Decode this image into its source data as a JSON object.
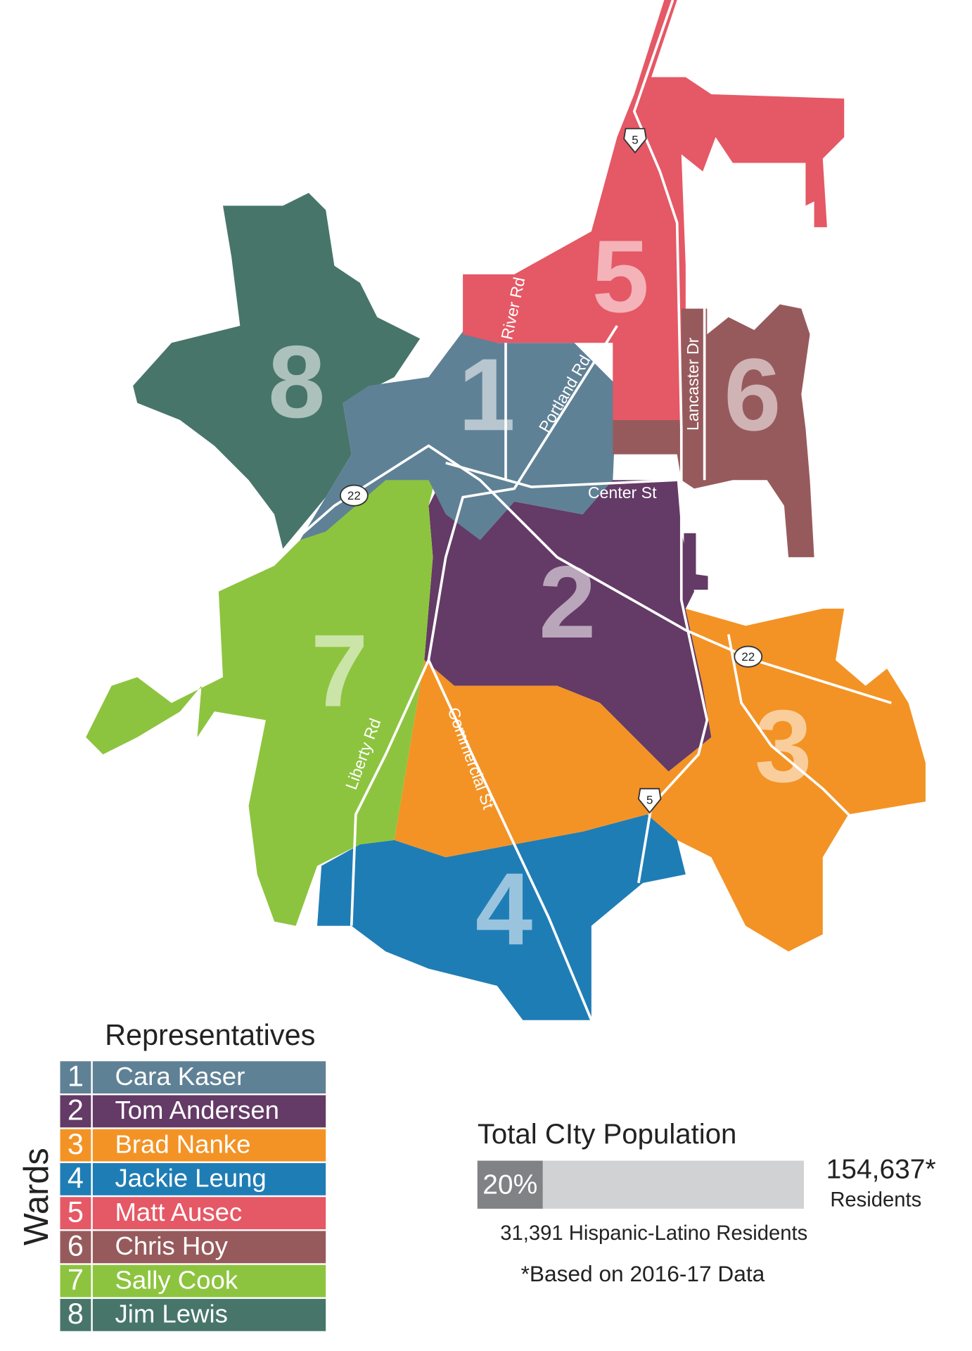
{
  "wards": [
    {
      "number": 1,
      "representative": "Cara Kaser",
      "color": "#5f8196"
    },
    {
      "number": 2,
      "representative": "Tom Andersen",
      "color": "#643a66"
    },
    {
      "number": 3,
      "representative": "Brad Nanke",
      "color": "#f39325"
    },
    {
      "number": 4,
      "representative": "Jackie Leung",
      "color": "#1f7db5"
    },
    {
      "number": 5,
      "representative": "Matt Ausec",
      "color": "#e55865"
    },
    {
      "number": 6,
      "representative": "Chris Hoy",
      "color": "#975a5c"
    },
    {
      "number": 7,
      "representative": "Sally Cook",
      "color": "#8dc43f"
    },
    {
      "number": 8,
      "representative": "Jim Lewis",
      "color": "#47756a"
    }
  ],
  "roads": [
    "River Rd",
    "Portland Rd",
    "Lancaster Dr",
    "Center St",
    "Liberty Rd",
    "Commercial St"
  ],
  "highways": [
    "5",
    "22",
    "5",
    "22"
  ],
  "legend": {
    "title": "Representatives",
    "side_label": "Wards"
  },
  "population": {
    "title": "Total CIty Population",
    "percent": 20,
    "percent_label": "20%",
    "total_label": "154,637*",
    "total_unit": "Residents",
    "subgroup_label": "31,391 Hispanic-Latino Residents",
    "note": "*Based on 2016-17 Data"
  }
}
